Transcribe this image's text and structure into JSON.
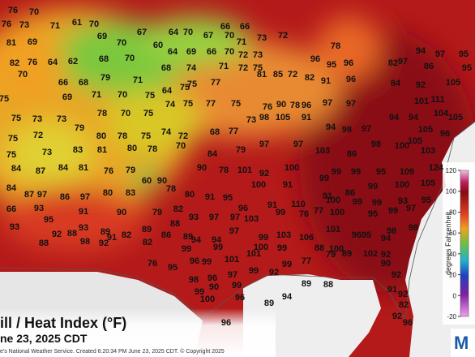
{
  "map": {
    "title": "ill / Heat Index (°F)",
    "date": "ne 23, 2025 CDT",
    "credit": "e's National Weather Service. Created 6:20:34 PM June 23, 2025 CDT. © Copyright 2025",
    "logo": "M",
    "colorbar": {
      "label": "degrees Fahrenheit",
      "ticks": [
        120,
        100,
        80,
        60,
        40,
        20,
        0,
        -20
      ]
    },
    "station_values": [
      76,
      70,
      76,
      73,
      71,
      61,
      69,
      70,
      67,
      64,
      70,
      67,
      70,
      66,
      66,
      73,
      72,
      81,
      69,
      70,
      60,
      64,
      69,
      66,
      70,
      71,
      72,
      73,
      78,
      82,
      76,
      64,
      62,
      68,
      70,
      68,
      74,
      71,
      72,
      75,
      70,
      66,
      68,
      79,
      71,
      75,
      77,
      81,
      85,
      72,
      82,
      96,
      95,
      96,
      91,
      96,
      97,
      94,
      97,
      95,
      82,
      86,
      95,
      84,
      92,
      105,
      75,
      69,
      71,
      70,
      75,
      64,
      75,
      75,
      73,
      73,
      78,
      70,
      75,
      74,
      75,
      77,
      75,
      76,
      90,
      78,
      96,
      97,
      97,
      72,
      79,
      80,
      78,
      75,
      74,
      72,
      68,
      77,
      73,
      98,
      105,
      91,
      94,
      98,
      97,
      94,
      94,
      101,
      111,
      104,
      105,
      105,
      96,
      75,
      75,
      73,
      83,
      81,
      80,
      78,
      70,
      84,
      79,
      97,
      97,
      103,
      86,
      98,
      100,
      105,
      103,
      84,
      87,
      84,
      81,
      76,
      79,
      90,
      90,
      78,
      101,
      92,
      100,
      99,
      99,
      95,
      109,
      124,
      84,
      87,
      97,
      86,
      97,
      80,
      83,
      60,
      78,
      80,
      91,
      95,
      100,
      91,
      99,
      91,
      86,
      99,
      100,
      105,
      66,
      93,
      91,
      90,
      79,
      82,
      96,
      91,
      110,
      77,
      100,
      99,
      99,
      93,
      95,
      93,
      95,
      93,
      89,
      88,
      93,
      97,
      97,
      103,
      99,
      76,
      100,
      95,
      99,
      97,
      92,
      88,
      91,
      82,
      89,
      86,
      89,
      94,
      94,
      97,
      99,
      103,
      106,
      101,
      96,
      98,
      98,
      88,
      98,
      92,
      82,
      99,
      100,
      99,
      88,
      100,
      95,
      94,
      76,
      95,
      99,
      96,
      99,
      101,
      101,
      99,
      77,
      79,
      89,
      102,
      92,
      98,
      96,
      97,
      99,
      92,
      89,
      88,
      90,
      92,
      91,
      92,
      99,
      99,
      90,
      100,
      96,
      94,
      89,
      96,
      82,
      92,
      96
    ]
  }
}
